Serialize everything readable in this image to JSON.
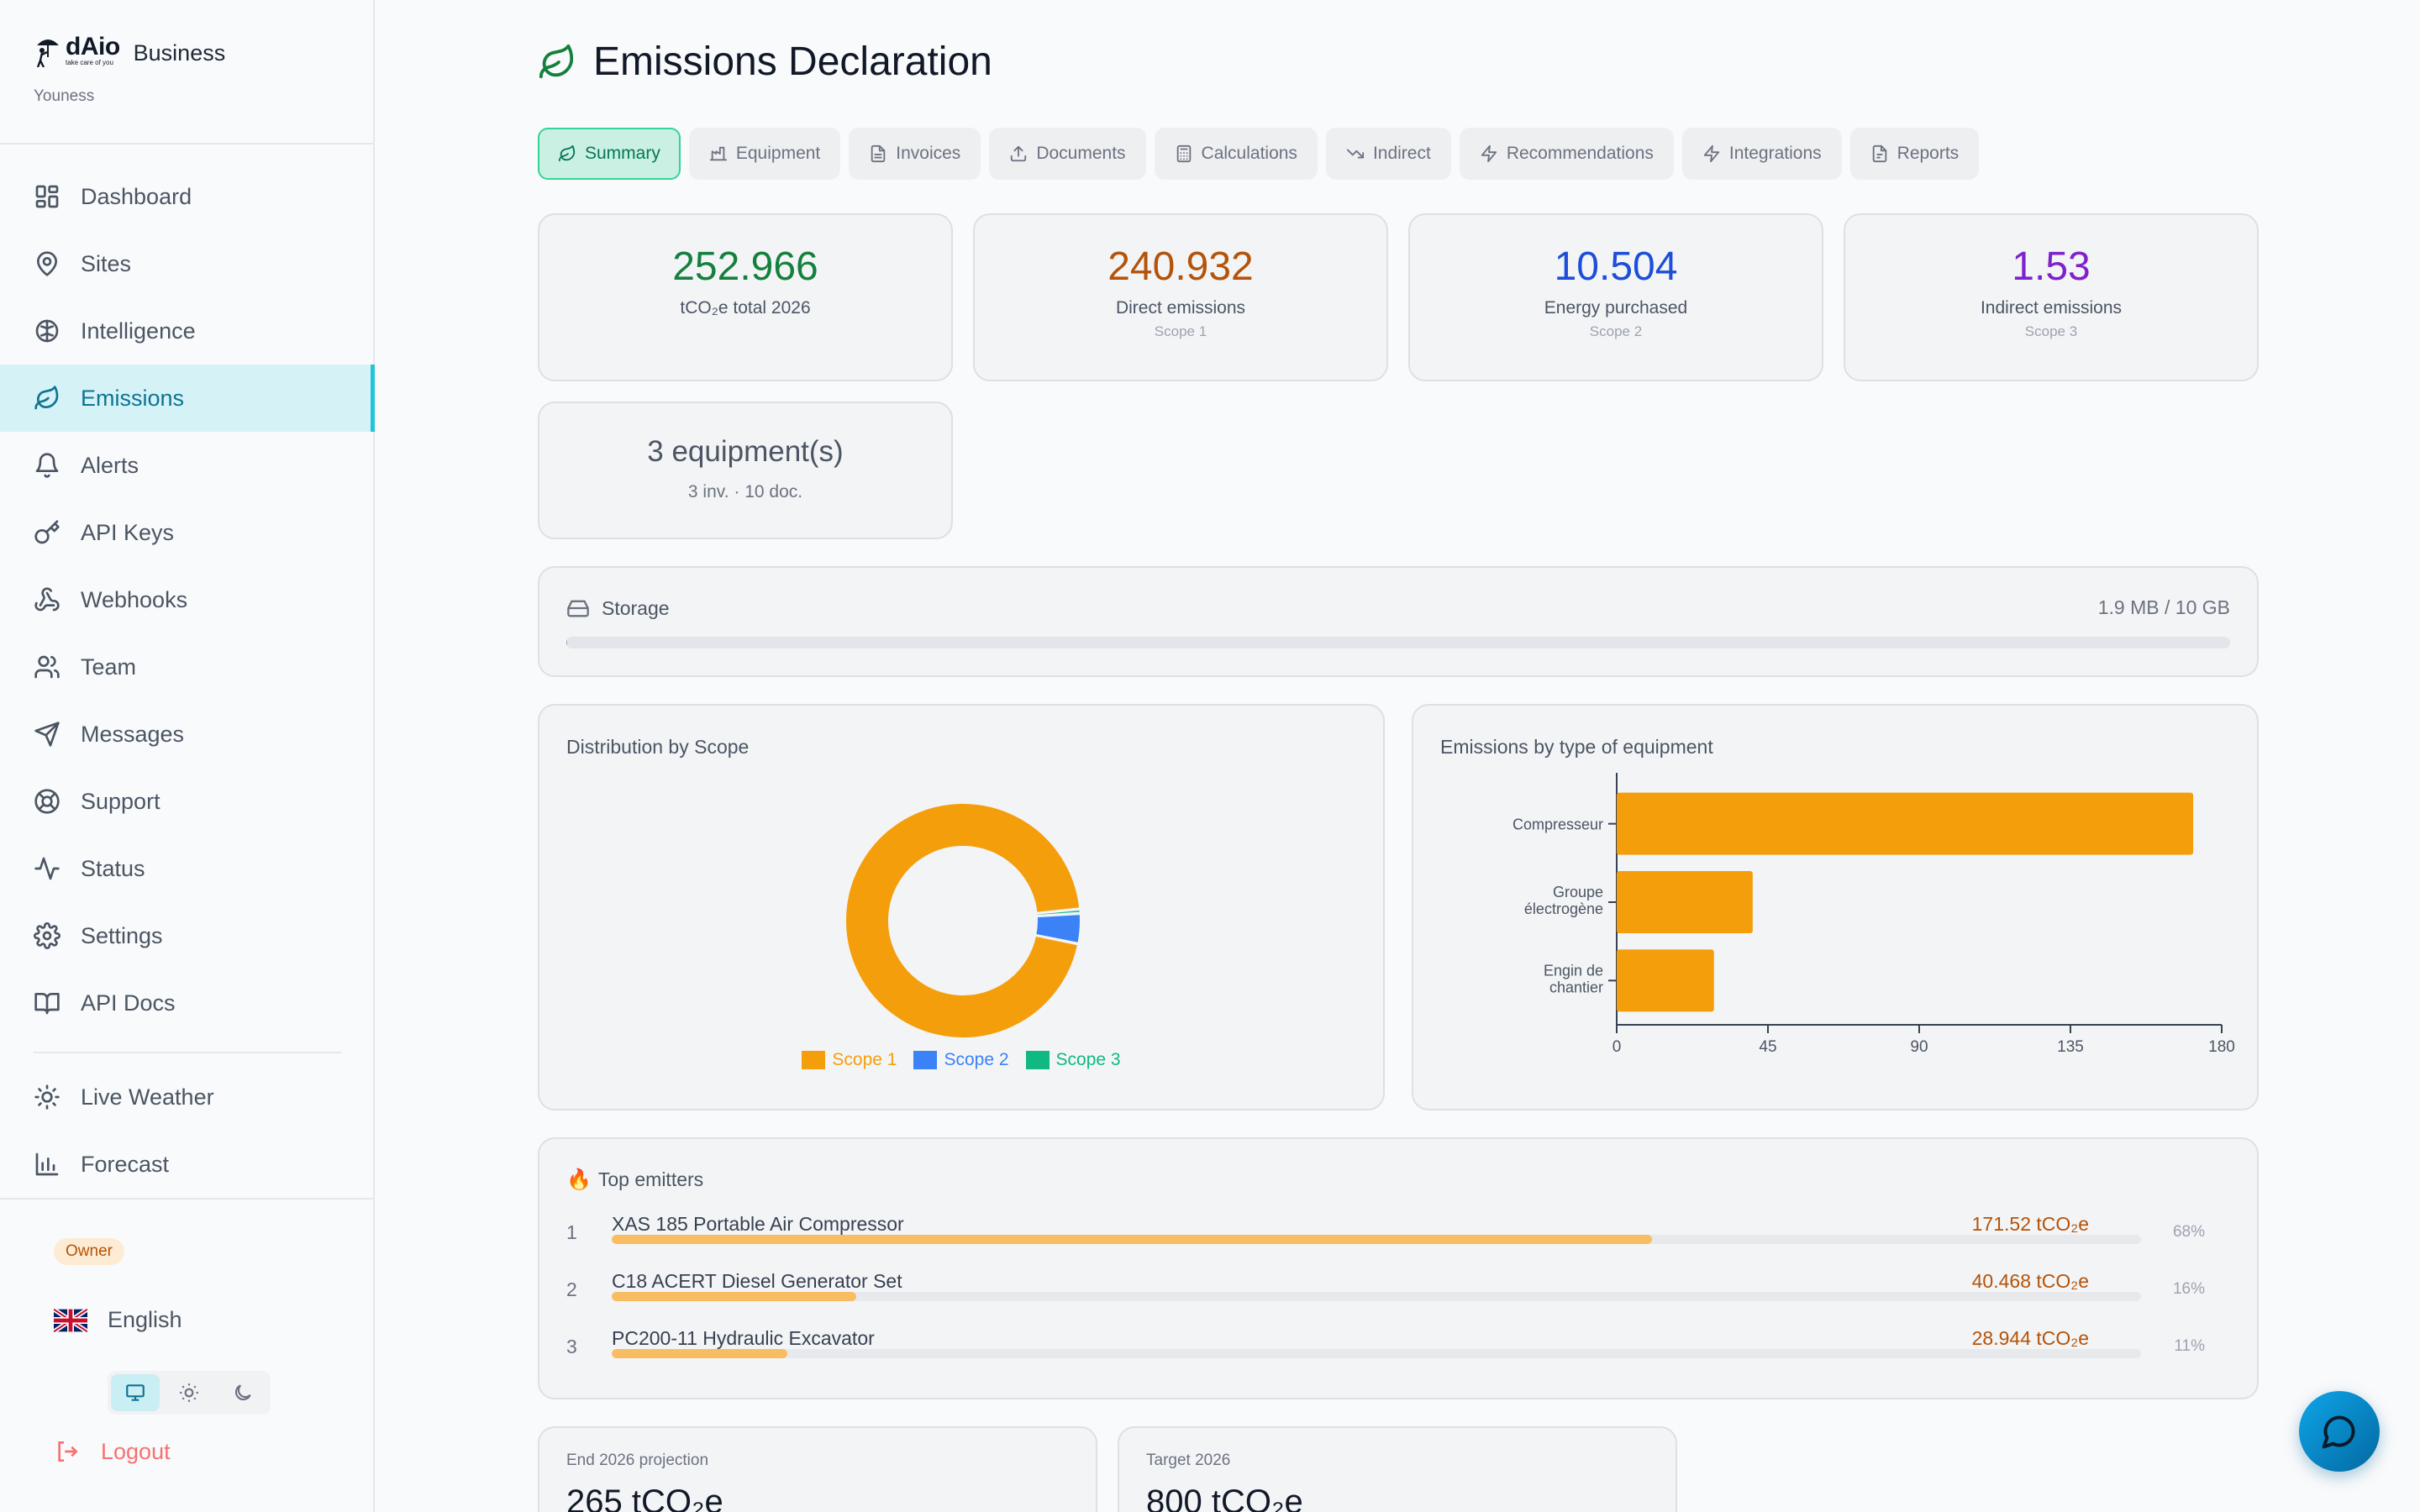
{
  "brand": {
    "name": "dAio",
    "tagline": "take care of you",
    "product": "Business",
    "user": "Youness"
  },
  "nav": {
    "items": [
      {
        "label": "Dashboard",
        "icon": "dashboard-icon"
      },
      {
        "label": "Sites",
        "icon": "map-pin-icon"
      },
      {
        "label": "Intelligence",
        "icon": "brain-icon"
      },
      {
        "label": "Emissions",
        "icon": "leaf-icon",
        "active": true
      },
      {
        "label": "Alerts",
        "icon": "bell-icon"
      },
      {
        "label": "API Keys",
        "icon": "key-icon"
      },
      {
        "label": "Webhooks",
        "icon": "webhook-icon"
      },
      {
        "label": "Team",
        "icon": "users-icon"
      },
      {
        "label": "Messages",
        "icon": "send-icon"
      },
      {
        "label": "Support",
        "icon": "lifebuoy-icon"
      },
      {
        "label": "Status",
        "icon": "activity-icon"
      },
      {
        "label": "Settings",
        "icon": "gear-icon"
      },
      {
        "label": "API Docs",
        "icon": "book-icon"
      }
    ],
    "extra": [
      {
        "label": "Live Weather",
        "icon": "sun-icon"
      },
      {
        "label": "Forecast",
        "icon": "bar-chart-icon"
      }
    ]
  },
  "footer": {
    "role": "Owner",
    "language": "English",
    "logout": "Logout"
  },
  "page": {
    "title": "Emissions Declaration"
  },
  "tabs": [
    {
      "label": "Summary",
      "icon": "leaf-icon",
      "active": true
    },
    {
      "label": "Equipment",
      "icon": "factory-icon"
    },
    {
      "label": "Invoices",
      "icon": "file-icon"
    },
    {
      "label": "Documents",
      "icon": "upload-icon"
    },
    {
      "label": "Calculations",
      "icon": "calculator-icon"
    },
    {
      "label": "Indirect",
      "icon": "trending-down-icon"
    },
    {
      "label": "Recommendations",
      "icon": "bolt-icon"
    },
    {
      "label": "Integrations",
      "icon": "bolt-icon"
    },
    {
      "label": "Reports",
      "icon": "report-icon"
    }
  ],
  "stats": [
    {
      "value": "252.966",
      "label": "tCO₂e total 2026",
      "sub": "",
      "color": "#15803d"
    },
    {
      "value": "240.932",
      "label": "Direct emissions",
      "sub": "Scope 1",
      "color": "#b45309"
    },
    {
      "value": "10.504",
      "label": "Energy purchased",
      "sub": "Scope 2",
      "color": "#1d4ed8"
    },
    {
      "value": "1.53",
      "label": "Indirect emissions",
      "sub": "Scope 3",
      "color": "#7e22ce"
    }
  ],
  "equipment_card": {
    "title": "3 equipment(s)",
    "sub": "3 inv. · 10 doc."
  },
  "storage": {
    "label": "Storage",
    "value": "1.9 MB / 10 GB",
    "used_fraction": 0.0002
  },
  "scope_chart_title": "Distribution by Scope",
  "equipment_chart_title": "Emissions by type of equipment",
  "chart_data": [
    {
      "type": "pie",
      "title": "Distribution by Scope",
      "labels": [
        "Scope 1",
        "Scope 2",
        "Scope 3"
      ],
      "values": [
        240.932,
        10.504,
        1.53
      ],
      "colors": [
        "#f59e0b",
        "#3b82f6",
        "#10b981"
      ],
      "legend": "bottom"
    },
    {
      "type": "bar",
      "orientation": "horizontal",
      "title": "Emissions by type of equipment",
      "categories": [
        "Compresseur",
        "Groupe électrogène",
        "Engin de chantier"
      ],
      "values": [
        171.52,
        40.468,
        28.944
      ],
      "xlim": [
        0,
        180
      ],
      "xticks": [
        "0",
        "45",
        "90",
        "135",
        "180"
      ],
      "color": "#f59e0b"
    }
  ],
  "top_emitters": {
    "title": "Top emitters",
    "items": [
      {
        "rank": "1",
        "name": "XAS 185 Portable Air Compressor",
        "value": "171.52 tCO₂e",
        "pct": "68%",
        "fraction": 0.68
      },
      {
        "rank": "2",
        "name": "C18 ACERT Diesel Generator Set",
        "value": "40.468 tCO₂e",
        "pct": "16%",
        "fraction": 0.16
      },
      {
        "rank": "3",
        "name": "PC200-11 Hydraulic Excavator",
        "value": "28.944 tCO₂e",
        "pct": "11%",
        "fraction": 0.115
      }
    ]
  },
  "projection": {
    "label": "End 2026 projection",
    "value": "265 tCO₂e"
  },
  "target": {
    "label": "Target 2026",
    "value": "800 tCO₂e"
  }
}
